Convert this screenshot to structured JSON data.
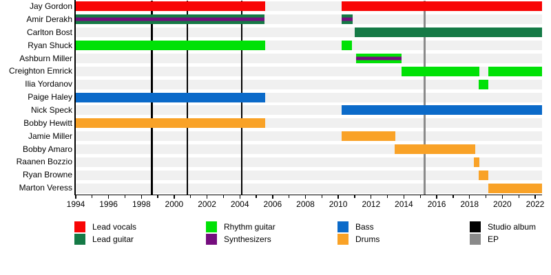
{
  "chart_data": {
    "type": "timeline",
    "title": "",
    "x_axis": {
      "start": 1994,
      "end": 2022.42,
      "tick_interval": 1,
      "label_interval": 2,
      "tick_labels": [
        1994,
        1996,
        1998,
        2000,
        2002,
        2004,
        2006,
        2008,
        2010,
        2012,
        2014,
        2016,
        2018,
        2020,
        2022
      ]
    },
    "members": [
      {
        "name": "Jay Gordon",
        "roles": [
          "lead_vocals"
        ],
        "segments": [
          {
            "start": 1994,
            "end": 2005.55
          },
          {
            "start": 2010.2,
            "end": 2022.42
          }
        ]
      },
      {
        "name": "Amir Derakh",
        "roles": [
          "lead_guitar",
          "synthesizers"
        ],
        "segments": [
          {
            "start": 1994,
            "end": 2005.5
          },
          {
            "start": 2010.2,
            "end": 2010.87
          }
        ]
      },
      {
        "name": "Carlton Bost",
        "roles": [
          "lead_guitar"
        ],
        "segments": [
          {
            "start": 2011.0,
            "end": 2022.42
          }
        ]
      },
      {
        "name": "Ryan Shuck",
        "roles": [
          "rhythm_guitar"
        ],
        "segments": [
          {
            "start": 1994,
            "end": 2005.55
          },
          {
            "start": 2010.2,
            "end": 2010.85
          }
        ]
      },
      {
        "name": "Ashburn Miller",
        "roles": [
          "rhythm_guitar",
          "synthesizers"
        ],
        "segments": [
          {
            "start": 2011.1,
            "end": 2013.85
          }
        ]
      },
      {
        "name": "Creighton Emrick",
        "roles": [
          "rhythm_guitar"
        ],
        "segments": [
          {
            "start": 2013.85,
            "end": 2018.6
          },
          {
            "start": 2019.15,
            "end": 2022.42
          }
        ]
      },
      {
        "name": "Ilia Yordanov",
        "roles": [
          "rhythm_guitar"
        ],
        "segments": [
          {
            "start": 2018.55,
            "end": 2019.15
          }
        ]
      },
      {
        "name": "Paige Haley",
        "roles": [
          "bass"
        ],
        "segments": [
          {
            "start": 1994,
            "end": 2005.55
          }
        ]
      },
      {
        "name": "Nick Speck",
        "roles": [
          "bass"
        ],
        "segments": [
          {
            "start": 2010.2,
            "end": 2022.42
          }
        ]
      },
      {
        "name": "Bobby Hewitt",
        "roles": [
          "drums"
        ],
        "segments": [
          {
            "start": 1994,
            "end": 2005.55
          }
        ]
      },
      {
        "name": "Jamie Miller",
        "roles": [
          "drums"
        ],
        "segments": [
          {
            "start": 2010.2,
            "end": 2013.5
          }
        ]
      },
      {
        "name": "Bobby Amaro",
        "roles": [
          "drums"
        ],
        "segments": [
          {
            "start": 2013.45,
            "end": 2018.35
          }
        ]
      },
      {
        "name": "Raanen Bozzio",
        "roles": [
          "drums"
        ],
        "segments": [
          {
            "start": 2018.25,
            "end": 2018.58
          }
        ]
      },
      {
        "name": "Ryan Browne",
        "roles": [
          "drums"
        ],
        "segments": [
          {
            "start": 2018.55,
            "end": 2019.15
          }
        ]
      },
      {
        "name": "Marton Veress",
        "roles": [
          "drums"
        ],
        "segments": [
          {
            "start": 2019.15,
            "end": 2022.42
          }
        ]
      }
    ],
    "events": [
      {
        "type": "studio_album",
        "year": 1998.63
      },
      {
        "type": "studio_album",
        "year": 2000.79
      },
      {
        "type": "studio_album",
        "year": 2004.12
      },
      {
        "type": "ep",
        "year": 2015.25
      }
    ],
    "colors": {
      "lead_vocals": "#F80505",
      "lead_guitar": "#157A46",
      "rhythm_guitar": "#00E106",
      "synthesizers": "#750D7E",
      "bass": "#0B6AC9",
      "drums": "#F9A227",
      "studio_album": "#000000",
      "ep": "#8A8A8A",
      "row_band": "#F0F0F0",
      "axis": "#000000"
    },
    "legend": {
      "columns": [
        {
          "items": [
            {
              "role": "lead_vocals",
              "label": "Lead vocals"
            },
            {
              "role": "lead_guitar",
              "label": "Lead guitar"
            }
          ]
        },
        {
          "items": [
            {
              "role": "rhythm_guitar",
              "label": "Rhythm guitar"
            },
            {
              "role": "synthesizers",
              "label": "Synthesizers"
            }
          ]
        },
        {
          "items": [
            {
              "role": "bass",
              "label": "Bass"
            },
            {
              "role": "drums",
              "label": "Drums"
            }
          ]
        },
        {
          "items": [
            {
              "role": "studio_album",
              "label": "Studio album"
            },
            {
              "role": "ep",
              "label": "EP"
            }
          ]
        }
      ]
    }
  }
}
